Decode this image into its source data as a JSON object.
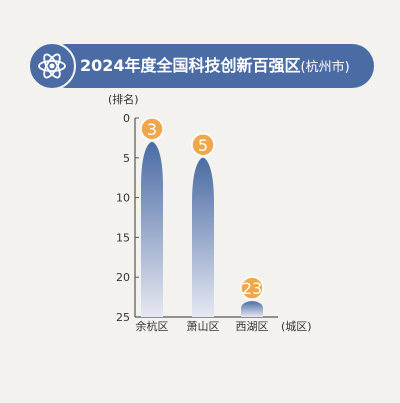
{
  "banner": {
    "title": "2024年度全国科技创新百强区",
    "subtitle": "(杭州市)",
    "icon": "atom-icon"
  },
  "colors": {
    "banner": "#4a6ba3",
    "bar_top": "#4a6ba3",
    "bar_bottom": "#e6e8f2",
    "badge": "#f0a64a",
    "axis_text": "#333333",
    "axis_line": "#555555"
  },
  "chart_data": {
    "type": "bar",
    "title": "2024年度全国科技创新百强区(杭州市)",
    "ylabel": "(排名)",
    "xlabel": "(城区)",
    "categories": [
      "余杭区",
      "萧山区",
      "西湖区"
    ],
    "values": [
      3,
      5,
      23
    ],
    "ylim": [
      0,
      25
    ],
    "y_inverted": true,
    "yticks": [
      0,
      5,
      10,
      15,
      20,
      25
    ],
    "grid": false,
    "legend": "none"
  }
}
